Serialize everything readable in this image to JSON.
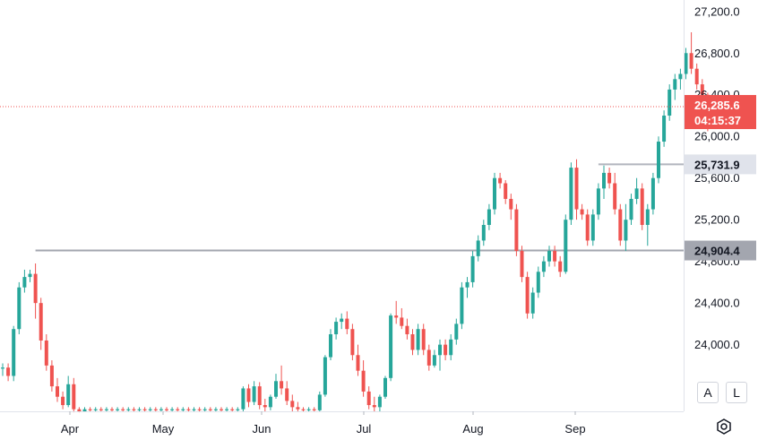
{
  "chart_data": {
    "type": "candlestick",
    "y_axis": {
      "ticks": [
        24000,
        24400,
        24800,
        25200,
        25600,
        26000,
        26400,
        26800,
        27200
      ],
      "tick_labels": [
        "24,000.0",
        "24,400.0",
        "24,800.0",
        "25,200.0",
        "25,600.0",
        "26,000.0",
        "26,400.0",
        "26,800.0",
        "27,200.0"
      ],
      "range": [
        23360,
        27310
      ]
    },
    "x_axis": {
      "labels": [
        "Apr",
        "May",
        "Jun",
        "Jul",
        "Aug",
        "Sep"
      ]
    },
    "current_price": {
      "value": 26285.6,
      "label": "26,285.6",
      "countdown": "04:15:37",
      "color": "#ef5350"
    },
    "levels": [
      {
        "value": 25731.9,
        "label": "25,731.9",
        "tag_bg": "#e0e3eb",
        "line_color": "#b2b5be",
        "start_index": 109
      },
      {
        "value": 24904.4,
        "label": "24,904.4",
        "tag_bg": "#a3a6af",
        "line_color": "#a3a6af",
        "start_index": 6
      }
    ],
    "colors": {
      "up": "#26a69a",
      "down": "#ef5350"
    },
    "candles": [
      [
        23770,
        23820,
        23700,
        23780
      ],
      [
        23780,
        23820,
        23650,
        23700
      ],
      [
        23700,
        24180,
        23650,
        24150
      ],
      [
        24150,
        24600,
        24100,
        24550
      ],
      [
        24550,
        24720,
        24500,
        24650
      ],
      [
        24650,
        24720,
        24600,
        24680
      ],
      [
        24680,
        24780,
        24250,
        24400
      ],
      [
        24400,
        24450,
        23950,
        24040
      ],
      [
        24040,
        24100,
        23750,
        23800
      ],
      [
        23800,
        23850,
        23550,
        23600
      ],
      [
        23600,
        23680,
        23450,
        23500
      ],
      [
        23500,
        23550,
        23380,
        23420
      ],
      [
        23420,
        23700,
        23400,
        23620
      ],
      [
        23620,
        23680,
        23350,
        23380
      ],
      [
        23380,
        23400,
        23350,
        23360
      ],
      [
        23360,
        23400,
        23360,
        23380
      ],
      [
        23380,
        23400,
        23360,
        23370
      ],
      [
        23370,
        23400,
        23360,
        23380
      ],
      [
        23380,
        23400,
        23360,
        23370
      ],
      [
        23370,
        23400,
        23360,
        23380
      ],
      [
        23380,
        23400,
        23360,
        23370
      ],
      [
        23370,
        23400,
        23360,
        23380
      ],
      [
        23380,
        23400,
        23360,
        23370
      ],
      [
        23370,
        23400,
        23360,
        23380
      ],
      [
        23380,
        23400,
        23360,
        23370
      ],
      [
        23370,
        23400,
        23360,
        23380
      ],
      [
        23380,
        23400,
        23360,
        23370
      ],
      [
        23370,
        23400,
        23360,
        23380
      ],
      [
        23380,
        23400,
        23360,
        23370
      ],
      [
        23370,
        23400,
        23360,
        23380
      ],
      [
        23380,
        23400,
        23360,
        23370
      ],
      [
        23370,
        23400,
        23360,
        23380
      ],
      [
        23380,
        23400,
        23360,
        23370
      ],
      [
        23370,
        23400,
        23360,
        23380
      ],
      [
        23380,
        23400,
        23360,
        23370
      ],
      [
        23370,
        23400,
        23360,
        23380
      ],
      [
        23380,
        23400,
        23360,
        23370
      ],
      [
        23370,
        23400,
        23360,
        23380
      ],
      [
        23380,
        23400,
        23360,
        23370
      ],
      [
        23370,
        23400,
        23360,
        23380
      ],
      [
        23380,
        23400,
        23360,
        23370
      ],
      [
        23370,
        23400,
        23360,
        23380
      ],
      [
        23380,
        23400,
        23360,
        23370
      ],
      [
        23370,
        23400,
        23360,
        23380
      ],
      [
        23380,
        23600,
        23360,
        23580
      ],
      [
        23580,
        23620,
        23400,
        23450
      ],
      [
        23450,
        23650,
        23420,
        23600
      ],
      [
        23600,
        23640,
        23380,
        23420
      ],
      [
        23420,
        23480,
        23360,
        23400
      ],
      [
        23400,
        23520,
        23370,
        23500
      ],
      [
        23500,
        23720,
        23480,
        23650
      ],
      [
        23650,
        23800,
        23520,
        23580
      ],
      [
        23580,
        23650,
        23420,
        23460
      ],
      [
        23460,
        23520,
        23360,
        23400
      ],
      [
        23400,
        23450,
        23360,
        23380
      ],
      [
        23380,
        23400,
        23360,
        23370
      ],
      [
        23370,
        23400,
        23360,
        23380
      ],
      [
        23380,
        23400,
        23360,
        23370
      ],
      [
        23370,
        23550,
        23360,
        23520
      ],
      [
        23520,
        23900,
        23500,
        23880
      ],
      [
        23880,
        24150,
        23850,
        24100
      ],
      [
        24100,
        24260,
        24050,
        24220
      ],
      [
        24220,
        24300,
        24150,
        24250
      ],
      [
        24250,
        24320,
        24100,
        24150
      ],
      [
        24150,
        24200,
        23850,
        23900
      ],
      [
        23900,
        24000,
        23700,
        23750
      ],
      [
        23750,
        23850,
        23500,
        23550
      ],
      [
        23550,
        23600,
        23380,
        23420
      ],
      [
        23420,
        23500,
        23360,
        23400
      ],
      [
        23400,
        23520,
        23360,
        23500
      ],
      [
        23500,
        23700,
        23480,
        23680
      ],
      [
        23680,
        24300,
        23650,
        24280
      ],
      [
        24280,
        24420,
        24200,
        24260
      ],
      [
        24260,
        24350,
        24150,
        24180
      ],
      [
        24180,
        24250,
        24050,
        24100
      ],
      [
        24100,
        24150,
        23900,
        23950
      ],
      [
        23950,
        24200,
        23900,
        24150
      ],
      [
        24150,
        24200,
        23900,
        23950
      ],
      [
        23950,
        24000,
        23750,
        23800
      ],
      [
        23800,
        23950,
        23780,
        23900
      ],
      [
        23900,
        24050,
        23750,
        24000
      ],
      [
        24000,
        24050,
        23850,
        23900
      ],
      [
        23900,
        24100,
        23850,
        24050
      ],
      [
        24050,
        24250,
        24000,
        24200
      ],
      [
        24200,
        24600,
        24150,
        24550
      ],
      [
        24550,
        24650,
        24450,
        24600
      ],
      [
        24600,
        24900,
        24550,
        24850
      ],
      [
        24850,
        25050,
        24800,
        25000
      ],
      [
        25000,
        25200,
        24950,
        25150
      ],
      [
        25150,
        25350,
        25100,
        25300
      ],
      [
        25300,
        25650,
        25250,
        25600
      ],
      [
        25600,
        25650,
        25500,
        25550
      ],
      [
        25550,
        25580,
        25350,
        25400
      ],
      [
        25400,
        25450,
        25200,
        25300
      ],
      [
        25300,
        25350,
        24850,
        24900
      ],
      [
        24900,
        24950,
        24600,
        24650
      ],
      [
        24650,
        24700,
        24250,
        24300
      ],
      [
        24300,
        24550,
        24250,
        24500
      ],
      [
        24500,
        24750,
        24450,
        24700
      ],
      [
        24700,
        24850,
        24650,
        24800
      ],
      [
        24800,
        24950,
        24750,
        24900
      ],
      [
        24900,
        24950,
        24750,
        24800
      ],
      [
        24800,
        24850,
        24650,
        24700
      ],
      [
        24700,
        25250,
        24680,
        25200
      ],
      [
        25200,
        25750,
        25150,
        25700
      ],
      [
        25700,
        25780,
        25200,
        25300
      ],
      [
        25300,
        25350,
        25200,
        25250
      ],
      [
        25250,
        25300,
        24950,
        25000
      ],
      [
        25000,
        25300,
        24950,
        25250
      ],
      [
        25250,
        25550,
        25200,
        25500
      ],
      [
        25500,
        25720,
        25400,
        25650
      ],
      [
        25650,
        25700,
        25500,
        25550
      ],
      [
        25550,
        25650,
        25250,
        25300
      ],
      [
        25300,
        25350,
        24950,
        25000
      ],
      [
        25000,
        25350,
        24900,
        25200
      ],
      [
        25200,
        25450,
        25150,
        25400
      ],
      [
        25400,
        25600,
        25350,
        25500
      ],
      [
        25500,
        25550,
        25100,
        25150
      ],
      [
        25150,
        25350,
        24950,
        25300
      ],
      [
        25300,
        25650,
        25250,
        25600
      ],
      [
        25600,
        26000,
        25550,
        25950
      ],
      [
        25950,
        26250,
        25900,
        26200
      ],
      [
        26200,
        26500,
        26150,
        26450
      ],
      [
        26450,
        26600,
        26350,
        26550
      ],
      [
        26550,
        26650,
        26450,
        26600
      ],
      [
        26600,
        26850,
        26550,
        26800
      ],
      [
        26800,
        27000,
        26600,
        26650
      ],
      [
        26650,
        26700,
        26450,
        26500
      ],
      [
        26500,
        26550,
        26300,
        26400
      ],
      [
        26400,
        26420,
        26050,
        26285.6
      ]
    ]
  },
  "controls": {
    "auto": "A",
    "log": "L"
  }
}
